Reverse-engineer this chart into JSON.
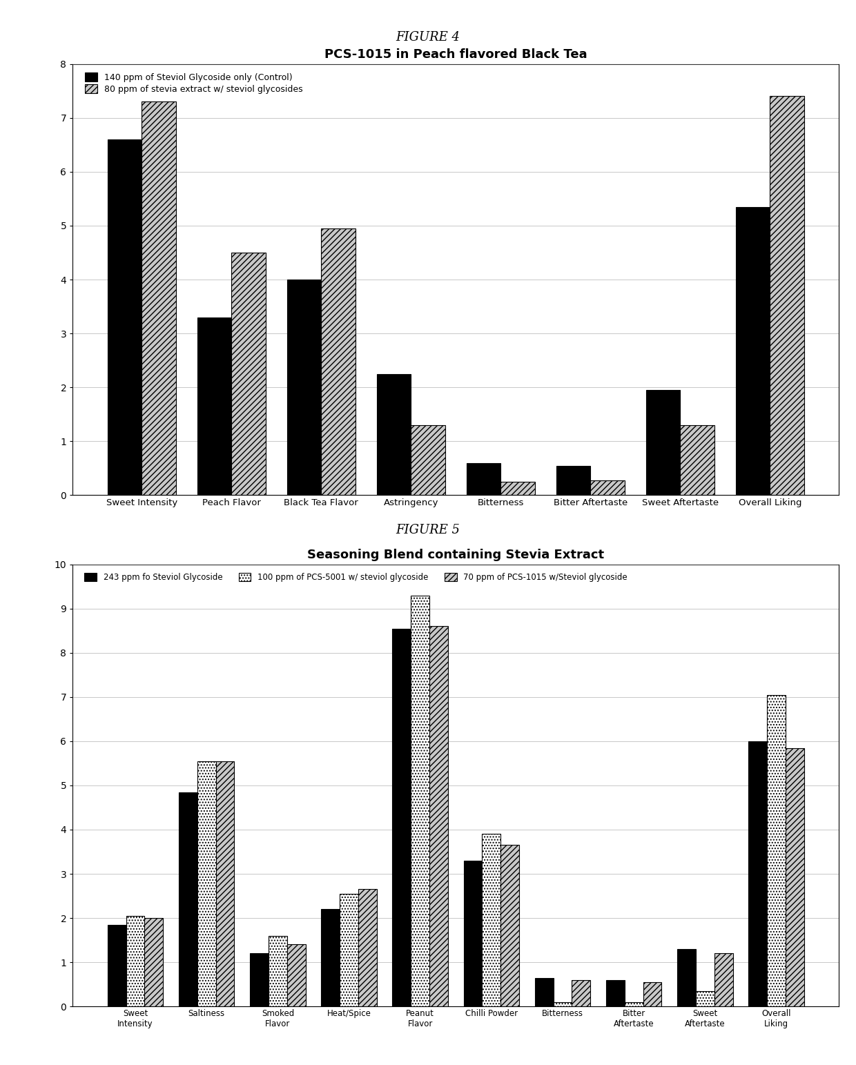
{
  "fig4": {
    "title": "PCS-1015 in Peach flavored Black Tea",
    "fig_label": "FIGURE 4",
    "categories": [
      "Sweet Intensity",
      "Peach Flavor",
      "Black Tea Flavor",
      "Astringency",
      "Bitterness",
      "Bitter Aftertaste",
      "Sweet Aftertaste",
      "Overall Liking"
    ],
    "series1_label": "140 ppm of Steviol Glycoside only (Control)",
    "series2_label": "80 ppm of stevia extract w/ steviol glycosides",
    "series1_values": [
      6.6,
      3.3,
      4.0,
      2.25,
      0.6,
      0.55,
      1.95,
      5.35
    ],
    "series2_values": [
      7.3,
      4.5,
      4.95,
      1.3,
      0.25,
      0.28,
      1.3,
      7.4
    ],
    "ylim": [
      0,
      8
    ],
    "yticks": [
      0,
      1,
      2,
      3,
      4,
      5,
      6,
      7,
      8
    ],
    "color1": "#000000",
    "color2": "#c8c8c8",
    "hatch1": "",
    "hatch2": "////"
  },
  "fig5": {
    "title": "Seasoning Blend containing Stevia Extract",
    "fig_label": "FIGURE 5",
    "categories": [
      "Sweet\nIntensity",
      "Saltiness",
      "Smoked\nFlavor",
      "Heat/Spice",
      "Peanut\nFlavor",
      "Chilli Powder",
      "Bitterness",
      "Bitter\nAftertaste",
      "Sweet\nAftertaste",
      "Overall\nLiking"
    ],
    "series1_label": "243 ppm fo Steviol Glycoside",
    "series2_label": "100 ppm of PCS-5001 w/ steviol glycoside",
    "series3_label": "70 ppm of PCS-1015 w/Steviol glycoside",
    "series1_values": [
      1.85,
      4.85,
      1.2,
      2.2,
      8.55,
      3.3,
      0.65,
      0.6,
      1.3,
      6.0
    ],
    "series2_values": [
      2.05,
      5.55,
      1.6,
      2.55,
      9.3,
      3.9,
      0.1,
      0.1,
      0.35,
      7.05
    ],
    "series3_values": [
      2.0,
      5.55,
      1.4,
      2.65,
      8.6,
      3.65,
      0.6,
      0.55,
      1.2,
      5.85
    ],
    "ylim": [
      0,
      10
    ],
    "yticks": [
      0,
      1,
      2,
      3,
      4,
      5,
      6,
      7,
      8,
      9,
      10
    ],
    "color1": "#000000",
    "color2": "#ffffff",
    "color3": "#c8c8c8",
    "hatch1": "",
    "hatch2": "....",
    "hatch3": "////"
  },
  "bg_color": "#ffffff",
  "box_bg": "#f8f8f8"
}
